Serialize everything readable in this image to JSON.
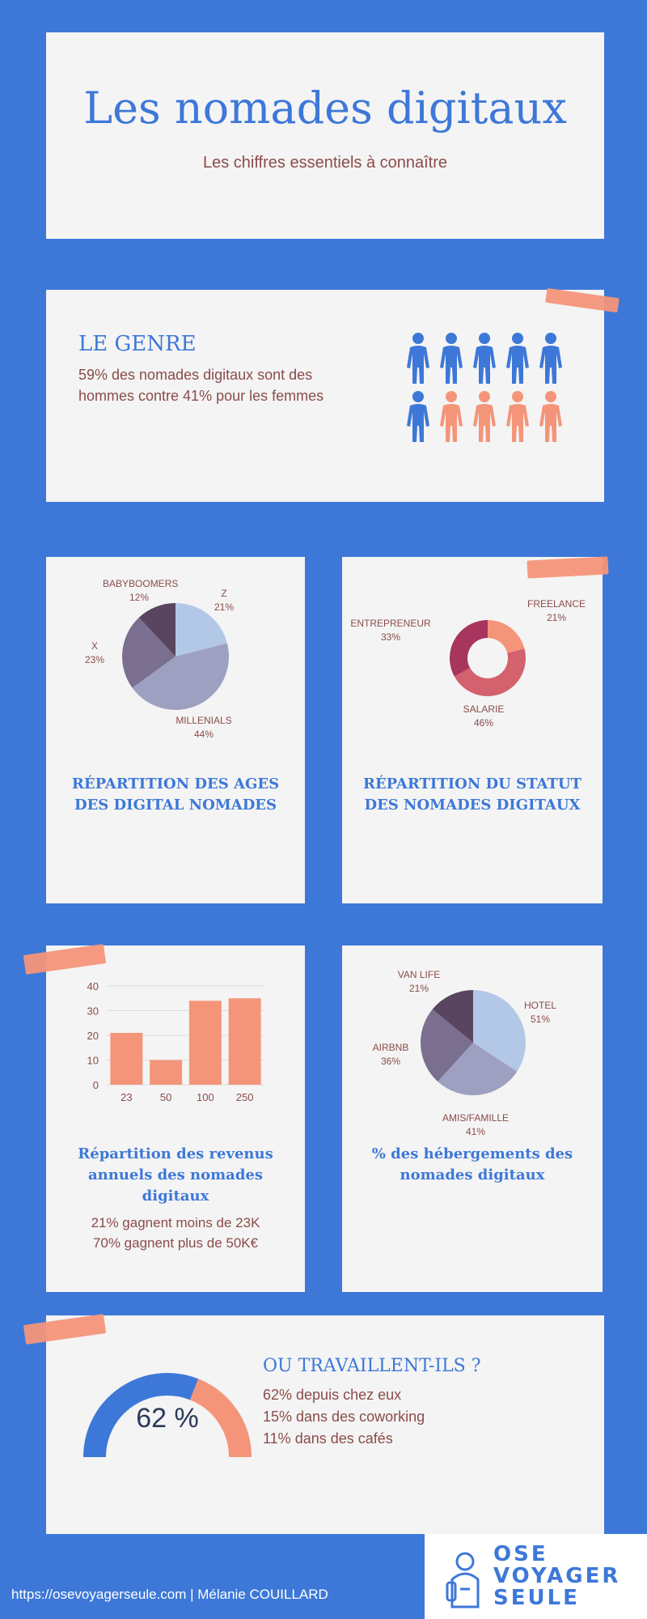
{
  "header": {
    "title": "Les nomades digitaux",
    "subtitle": "Les chiffres essentiels à connaître"
  },
  "genre": {
    "heading": "LE GENRE",
    "text_line1": "59% des nomades digitaux sont des",
    "text_line2": "hommes contre 41% pour les femmes",
    "men_count": 6,
    "women_count": 4,
    "colors": {
      "men": "#3d78d8",
      "women": "#f4957a"
    }
  },
  "ages": {
    "title_line1": "RÉPARTITION DES AGES",
    "title_line2": "DES DIGITAL NOMADES"
  },
  "statut": {
    "title_line1": "RÉPARTITION DU STATUT",
    "title_line2": "DES NOMADES DIGITAUX"
  },
  "revenus": {
    "title_line1": "Répartition des revenus",
    "title_line2": "annuels des nomades",
    "title_line3": "digitaux",
    "stat1": "21% gagnent moins de 23K",
    "stat2": "70% gagnent plus de 50K€"
  },
  "hebergements": {
    "title_line1": "% des hébergements des",
    "title_line2": "nomades digitaux"
  },
  "travail": {
    "heading": "OU TRAVAILLENT-ILS ?",
    "line1": "62% depuis chez eux",
    "line2": "15% dans des coworking",
    "line3": "11% dans des cafés",
    "gauge_label": "62 %",
    "gauge_value": 62
  },
  "footer": {
    "credit": "https://osevoyagerseule.com | Mélanie COUILLARD",
    "logo_line1": "OSE",
    "logo_line2": "VOYAGER",
    "logo_line3": "SEULE"
  },
  "chart_data": [
    {
      "type": "pie",
      "labels": [
        "Z",
        "MILLENIALS",
        "X",
        "BABYBOOMERS"
      ],
      "values": [
        21,
        44,
        23,
        12
      ],
      "value_labels": [
        "21%",
        "44%",
        "23%",
        "12%"
      ],
      "colors": [
        "#b3c8e6",
        "#9ea0c2",
        "#7b6f8f",
        "#5a4560"
      ],
      "title": "RÉPARTITION DES AGES DES DIGITAL NOMADES"
    },
    {
      "type": "pie",
      "donut": true,
      "labels": [
        "FREELANCE",
        "SALARIE",
        "ENTREPRENEUR"
      ],
      "values": [
        21,
        46,
        33
      ],
      "value_labels": [
        "21%",
        "46%",
        "33%"
      ],
      "colors": [
        "#f4957a",
        "#d3616e",
        "#a8355e"
      ],
      "title": "RÉPARTITION DU STATUT DES NOMADES DIGITAUX"
    },
    {
      "type": "bar",
      "categories": [
        "23",
        "50",
        "100",
        "250"
      ],
      "values": [
        21,
        10,
        34,
        35
      ],
      "ylim": [
        0,
        40
      ],
      "yticks": [
        "0",
        "10",
        "20",
        "30",
        "40"
      ],
      "grid": true,
      "color": "#f4957a",
      "title": "Répartition des revenus annuels des nomades digitaux"
    },
    {
      "type": "pie",
      "labels": [
        "HOTEL",
        "AMIS/FAMILLE",
        "AIRBNB",
        "VAN LIFE"
      ],
      "values": [
        51,
        41,
        36,
        21
      ],
      "value_labels": [
        "51%",
        "41%",
        "36%",
        "21%"
      ],
      "colors": [
        "#b3c8e6",
        "#9ea0c2",
        "#7b6f8f",
        "#5a4560"
      ],
      "title": "% des hébergements des nomades digitaux"
    }
  ]
}
